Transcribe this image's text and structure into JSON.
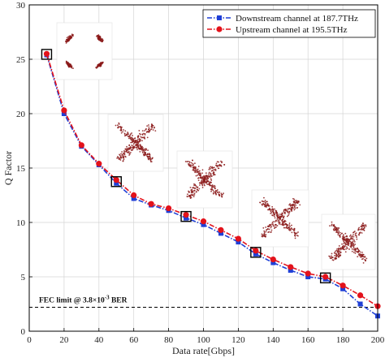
{
  "chart_data": {
    "type": "line",
    "xlabel": "Data rate[Gbps]",
    "ylabel": "Q Factor",
    "xlim": [
      0,
      200
    ],
    "ylim": [
      0,
      30
    ],
    "xticks": [
      0,
      20,
      40,
      60,
      80,
      100,
      120,
      140,
      160,
      180,
      200
    ],
    "yticks": [
      0,
      5,
      10,
      15,
      20,
      25,
      30
    ],
    "grid": true,
    "legend_position": "top-right",
    "x": [
      10,
      20,
      30,
      40,
      50,
      60,
      70,
      80,
      90,
      100,
      110,
      120,
      130,
      140,
      150,
      160,
      170,
      180,
      190,
      200
    ],
    "series": [
      {
        "name": "Downstream channel at 187.7THz",
        "color": "#1f3fd6",
        "marker": "square",
        "values": [
          25.4,
          20.0,
          17.0,
          15.3,
          13.6,
          12.2,
          11.6,
          11.1,
          10.4,
          9.8,
          9.0,
          8.2,
          7.1,
          6.3,
          5.6,
          5.0,
          4.8,
          3.9,
          2.5,
          1.4
        ]
      },
      {
        "name": "Upstream channel at 195.5THz",
        "color": "#e3121b",
        "marker": "circle",
        "values": [
          25.5,
          20.3,
          17.1,
          15.4,
          13.9,
          12.5,
          11.7,
          11.3,
          10.7,
          10.1,
          9.3,
          8.5,
          7.4,
          6.6,
          5.9,
          5.3,
          5.0,
          4.2,
          3.3,
          2.3
        ]
      }
    ],
    "highlighted_x": [
      10,
      50,
      90,
      130,
      170
    ],
    "threshold": {
      "y": 2.2,
      "label_prefix": "FEC limit @ 3.8×10",
      "label_exponent": "-3",
      "label_suffix": " BER"
    },
    "constellation_insets": [
      {
        "at_x": 10,
        "style": "four-clusters"
      },
      {
        "at_x": 50,
        "style": "cross-blobs"
      },
      {
        "at_x": 90,
        "style": "cross-blobs"
      },
      {
        "at_x": 130,
        "style": "cross-blobs"
      },
      {
        "at_x": 170,
        "style": "cross-blobs"
      }
    ]
  }
}
